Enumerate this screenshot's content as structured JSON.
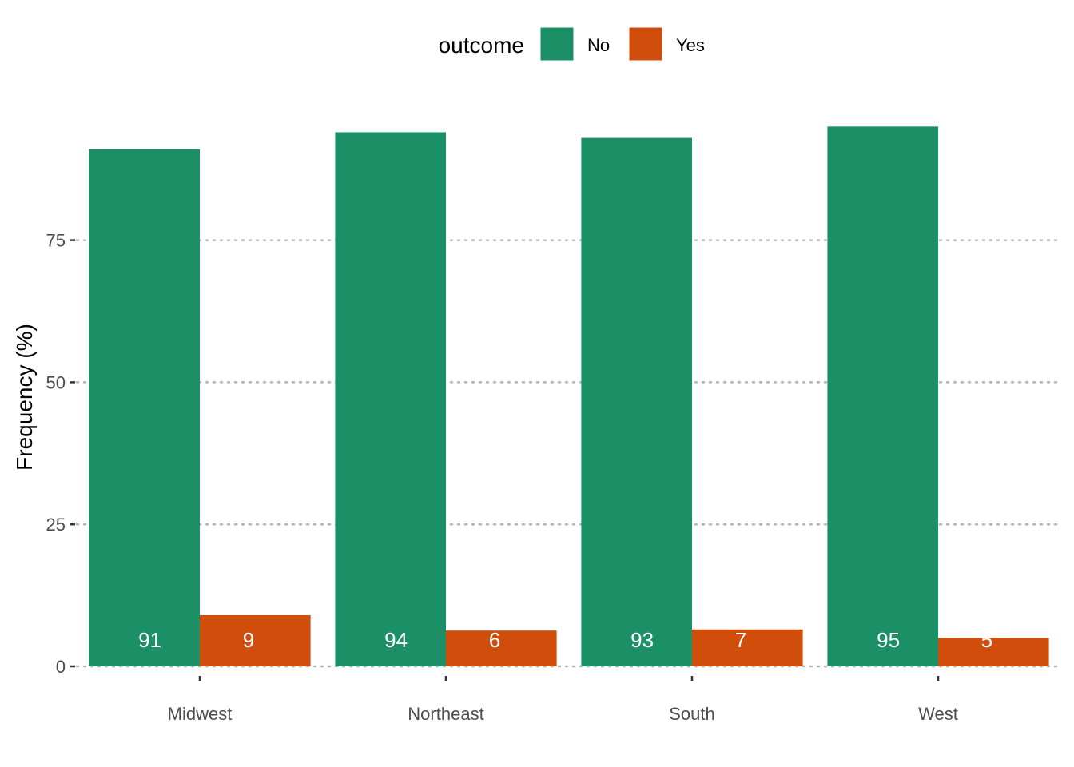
{
  "chart_data": {
    "type": "bar",
    "categories": [
      "Midwest",
      "Northeast",
      "South",
      "West"
    ],
    "series": [
      {
        "name": "No",
        "values": [
          91,
          94,
          93,
          95
        ],
        "labels": [
          "91",
          "94",
          "93",
          "95"
        ],
        "color": "#1B9066"
      },
      {
        "name": "Yes",
        "values": [
          9,
          6.3,
          6.5,
          5
        ],
        "labels": [
          "9",
          "6",
          "7",
          "5"
        ],
        "color": "#D14D0B"
      }
    ],
    "legend_title": "outcome",
    "legend_position": "top",
    "ylabel": "Frequency (%)",
    "xlabel": "",
    "ylim": [
      0,
      100
    ],
    "yticks": [
      0,
      25,
      50,
      75
    ],
    "grid": "horizontal dotted",
    "grid_color": "#B3B3B3"
  }
}
